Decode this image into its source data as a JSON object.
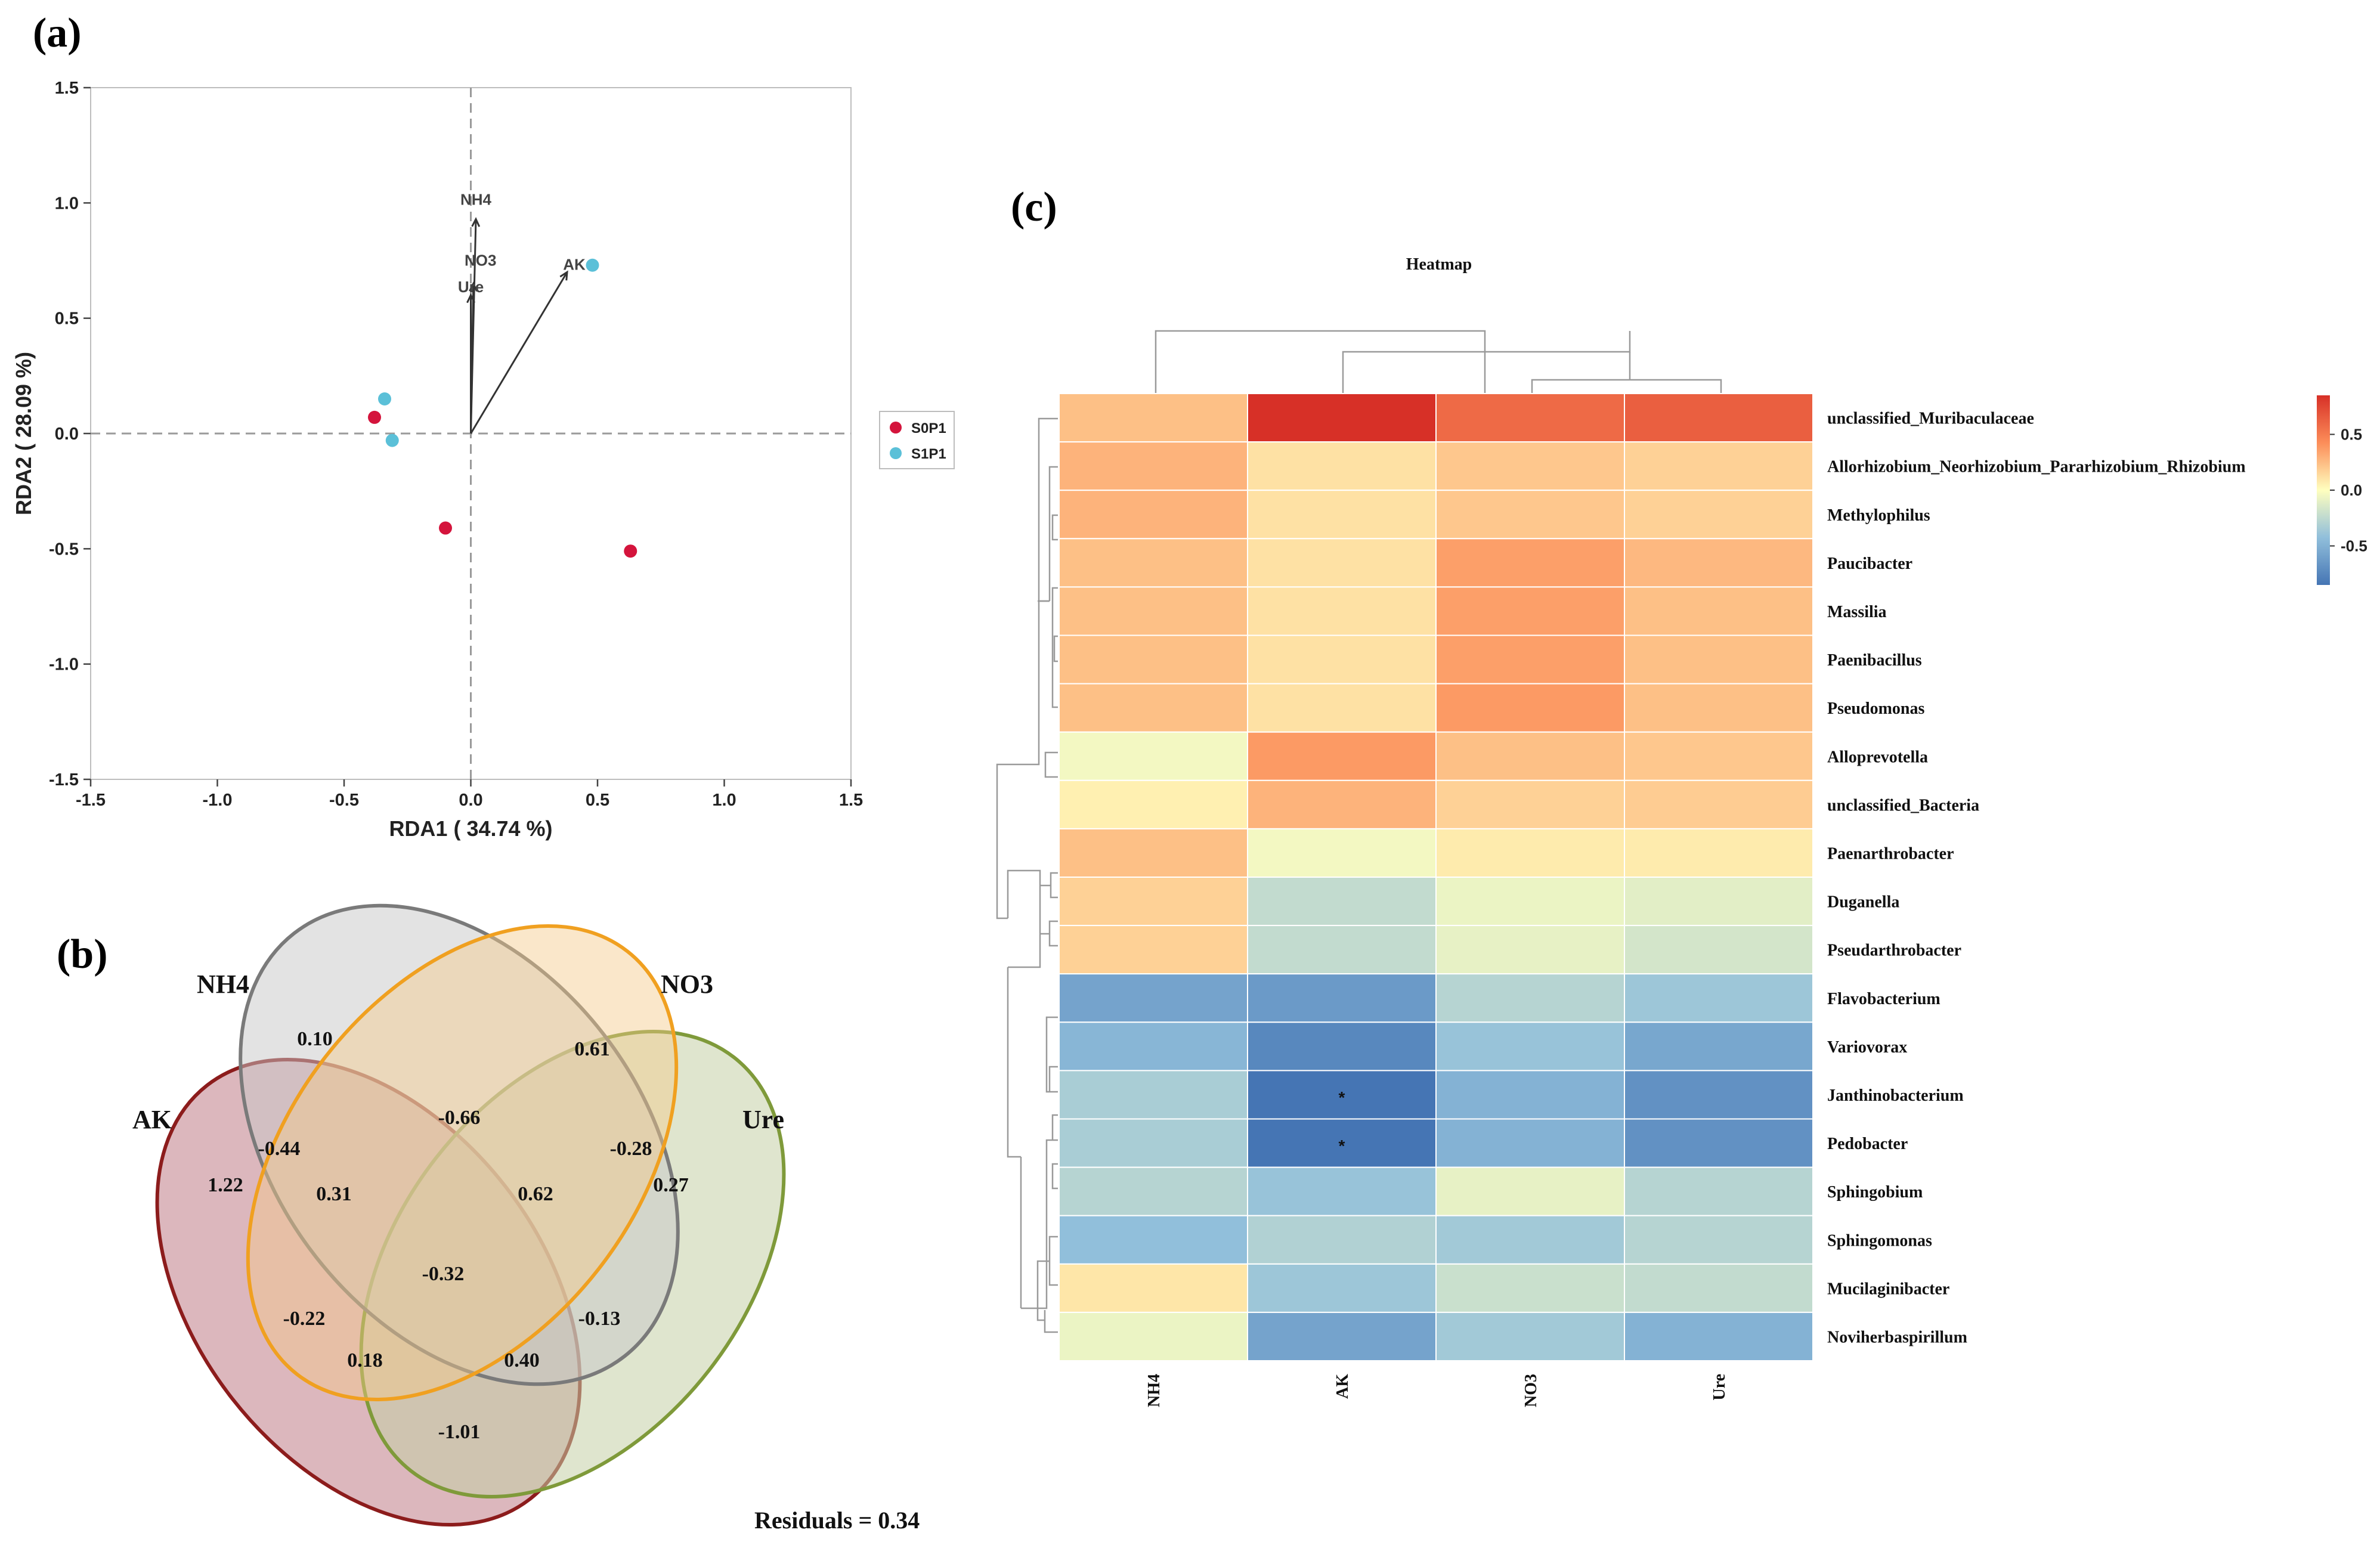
{
  "panels": {
    "a": "(a)",
    "b": "(b)",
    "c": "(c)"
  },
  "chart_data": [
    {
      "type": "scatter",
      "subtype": "rda-biplot",
      "panel": "(a)",
      "xlabel": "RDA1 ( 34.74 %)",
      "ylabel": "RDA2 ( 28.09 %)",
      "xlim": [
        -1.5,
        1.5
      ],
      "ylim": [
        -1.5,
        1.5
      ],
      "xticks": [
        "-1.5",
        "-1.0",
        "-0.5",
        "0.0",
        "0.5",
        "1.0",
        "1.5"
      ],
      "yticks": [
        "-1.5",
        "-1.0",
        "-0.5",
        "0.0",
        "0.5",
        "1.0",
        "1.5"
      ],
      "xtick_values": [
        -1.5,
        -1.0,
        -0.5,
        0.0,
        0.5,
        1.0,
        1.5
      ],
      "ytick_values": [
        -1.5,
        -1.0,
        -0.5,
        0.0,
        0.5,
        1.0,
        1.5
      ],
      "series": [
        {
          "name": "S0P1",
          "color": "#d4143c",
          "points": [
            [
              -0.38,
              0.07
            ],
            [
              -0.1,
              -0.41
            ],
            [
              0.63,
              -0.51
            ]
          ]
        },
        {
          "name": "S1P1",
          "color": "#5bc0d8",
          "points": [
            [
              -0.34,
              0.15
            ],
            [
              -0.31,
              -0.03
            ],
            [
              0.48,
              0.73
            ]
          ]
        }
      ],
      "arrows": [
        {
          "label": "NH4",
          "x": 0.02,
          "y": 0.93
        },
        {
          "label": "NO3",
          "x": 0.01,
          "y": 0.65
        },
        {
          "label": "Ure",
          "x": 0.0,
          "y": 0.6
        },
        {
          "label": "AK",
          "x": 0.38,
          "y": 0.7
        }
      ],
      "legend": [
        "S0P1",
        "S1P1"
      ]
    },
    {
      "type": "venn",
      "panel": "(b)",
      "sets": [
        {
          "name": "NH4",
          "color": "#7a7a7a",
          "fill": "#d9d9d9"
        },
        {
          "name": "NO3",
          "color": "#f0a020",
          "fill": "#f9d9a6"
        },
        {
          "name": "AK",
          "color": "#8c1c1c",
          "fill": "#d6a2aa"
        },
        {
          "name": "Ure",
          "color": "#7f9a3a",
          "fill": "#d6dfbf"
        }
      ],
      "values": [
        "0.10",
        "0.61",
        "-0.66",
        "-0.44",
        "-0.28",
        "1.22",
        "0.31",
        "0.62",
        "0.27",
        "-0.32",
        "-0.22",
        "-0.13",
        "0.18",
        "0.40",
        "-1.01"
      ],
      "residuals": "Residuals = 0.34"
    },
    {
      "type": "heatmap",
      "panel": "(c)",
      "title": "Heatmap",
      "columns": [
        "NH4",
        "AK",
        "NO3",
        "Ure"
      ],
      "rows": [
        "unclassified_Muribaculaceae",
        "Allorhizobium_Neorhizobium_Pararhizobium_Rhizobium",
        "Methylophilus",
        "Paucibacter",
        "Massilia",
        "Paenibacillus",
        "Pseudomonas",
        "Alloprevotella",
        "unclassified_Bacteria",
        "Paenarthrobacter",
        "Duganella",
        "Pseudarthrobacter",
        "Flavobacterium",
        "Variovorax",
        "Janthinobacterium",
        "Pedobacter",
        "Sphingobium",
        "Sphingomonas",
        "Mucilaginibacter",
        "Noviherbaspirillum"
      ],
      "values": [
        [
          0.25,
          0.85,
          0.6,
          0.65
        ],
        [
          0.3,
          0.12,
          0.22,
          0.18
        ],
        [
          0.3,
          0.12,
          0.22,
          0.18
        ],
        [
          0.25,
          0.12,
          0.38,
          0.28
        ],
        [
          0.25,
          0.12,
          0.38,
          0.25
        ],
        [
          0.25,
          0.12,
          0.38,
          0.25
        ],
        [
          0.25,
          0.12,
          0.4,
          0.25
        ],
        [
          -0.05,
          0.4,
          0.25,
          0.22
        ],
        [
          0.06,
          0.3,
          0.18,
          0.2
        ],
        [
          0.25,
          -0.05,
          0.08,
          0.08
        ],
        [
          0.18,
          -0.25,
          -0.08,
          -0.12
        ],
        [
          0.18,
          -0.25,
          -0.1,
          -0.18
        ],
        [
          -0.6,
          -0.65,
          -0.3,
          -0.4
        ],
        [
          -0.5,
          -0.75,
          -0.42,
          -0.58
        ],
        [
          -0.35,
          -0.85,
          -0.52,
          -0.7
        ],
        [
          -0.35,
          -0.85,
          -0.52,
          -0.7
        ],
        [
          -0.3,
          -0.42,
          -0.1,
          -0.3
        ],
        [
          -0.45,
          -0.32,
          -0.38,
          -0.3
        ],
        [
          0.1,
          -0.4,
          -0.22,
          -0.25
        ],
        [
          -0.08,
          -0.6,
          -0.38,
          -0.52
        ]
      ],
      "significance": [
        {
          "row": "Janthinobacterium",
          "col": "AK",
          "mark": "*"
        },
        {
          "row": "Pedobacter",
          "col": "AK",
          "mark": "*"
        }
      ],
      "colorbar": {
        "ticks": [
          "0.5",
          "0.0",
          "-0.5"
        ],
        "tick_values": [
          0.5,
          0.0,
          -0.5
        ],
        "range": [
          -0.85,
          0.85
        ]
      }
    }
  ]
}
